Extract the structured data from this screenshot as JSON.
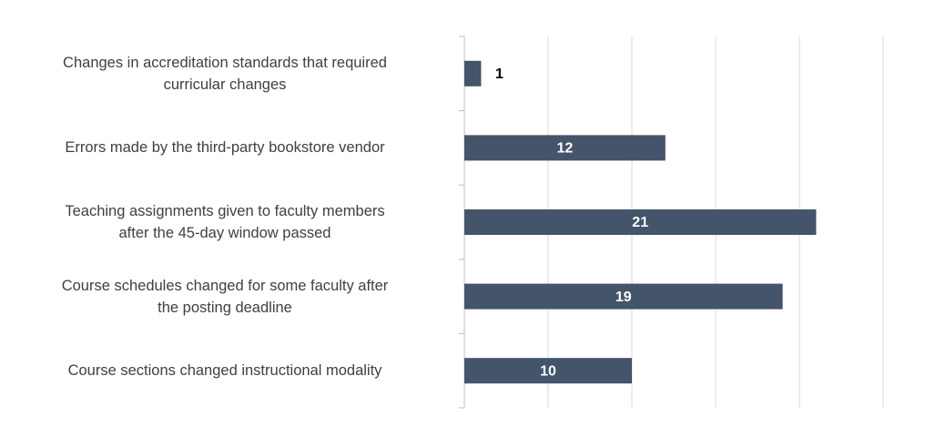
{
  "chart_data": {
    "type": "barh",
    "categories": [
      "Changes in accreditation standards that required\ncurricular changes",
      "Errors made by the third-party bookstore vendor",
      "Teaching assignments given to faculty members\nafter the 45-day window passed",
      "Course schedules changed for some faculty after\nthe posting deadline",
      "Course sections changed instructional modality"
    ],
    "values": [
      1,
      12,
      21,
      19,
      10
    ],
    "color": "#44546a",
    "xlim": [
      0,
      25
    ],
    "xticks": [
      0,
      5,
      10,
      15,
      20,
      25
    ],
    "grid": true
  }
}
